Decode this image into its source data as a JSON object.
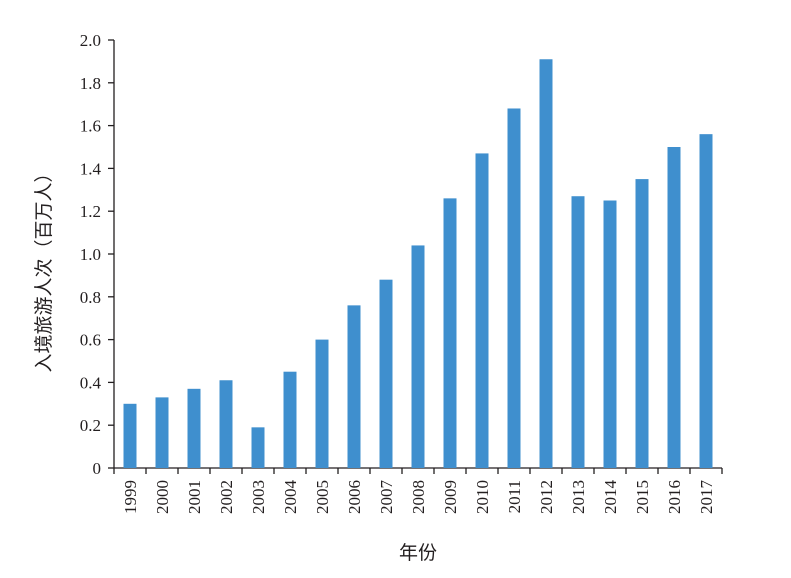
{
  "chart_data": {
    "type": "bar",
    "xlabel": "年份",
    "ylabel": "入境旅游人次（百万人）",
    "categories": [
      "1999",
      "2000",
      "2001",
      "2002",
      "2003",
      "2004",
      "2005",
      "2006",
      "2007",
      "2008",
      "2009",
      "2010",
      "2011",
      "2012",
      "2013",
      "2014",
      "2015",
      "2016",
      "2017"
    ],
    "values": [
      0.3,
      0.33,
      0.37,
      0.41,
      0.19,
      0.45,
      0.6,
      0.76,
      0.88,
      1.04,
      1.26,
      1.47,
      1.68,
      1.91,
      1.27,
      1.25,
      1.35,
      1.5,
      1.56
    ],
    "ylim": [
      0,
      2.0
    ],
    "yticks": [
      "0",
      "0.2",
      "0.4",
      "0.6",
      "0.8",
      "1.0",
      "1.2",
      "1.4",
      "1.6",
      "1.8",
      "2.0"
    ],
    "grid": false,
    "bar_color": "#3f8fce",
    "axis_color": "#231f20"
  }
}
